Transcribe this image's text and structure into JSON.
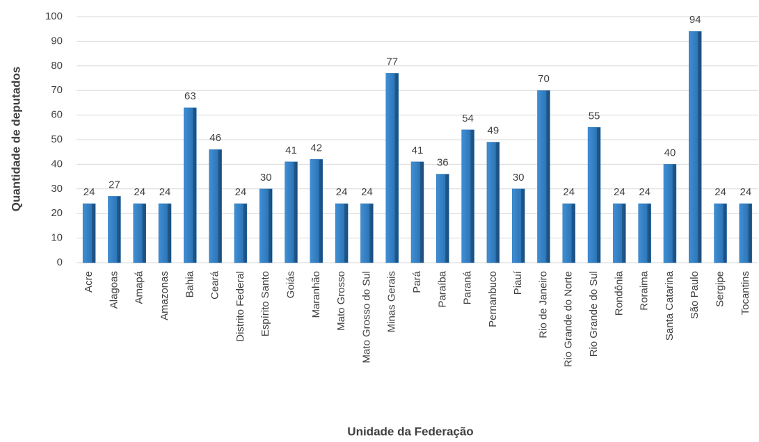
{
  "chart_data": {
    "type": "bar",
    "x_label": "Unidade da Federação",
    "y_label": "Quantidade de deputados",
    "categories": [
      "Acre",
      "Alagoas",
      "Amapá",
      "Amazonas",
      "Bahia",
      "Ceará",
      "Distrito Federal",
      "Espírito Santo",
      "Goiás",
      "Maranhão",
      "Mato Grosso",
      "Mato Grosso do Sul",
      "Minas Gerais",
      "Pará",
      "Paraíba",
      "Paraná",
      "Pernanbuco",
      "Piauí",
      "Rio de Janeiro",
      "Rio Grande do Norte",
      "Rio Grande do Sul",
      "Rondônia",
      "Roraima",
      "Santa Catarina",
      "São Paulo",
      "Sergipe",
      "Tocantins"
    ],
    "values": [
      24,
      27,
      24,
      24,
      63,
      46,
      24,
      30,
      41,
      42,
      24,
      24,
      77,
      41,
      36,
      54,
      49,
      30,
      70,
      24,
      55,
      24,
      24,
      40,
      94,
      24,
      24
    ],
    "color": "#2e75b6",
    "ylim": [
      0,
      100
    ],
    "yticks": [
      0,
      10,
      20,
      30,
      40,
      50,
      60,
      70,
      80,
      90,
      100
    ],
    "grid": true
  }
}
